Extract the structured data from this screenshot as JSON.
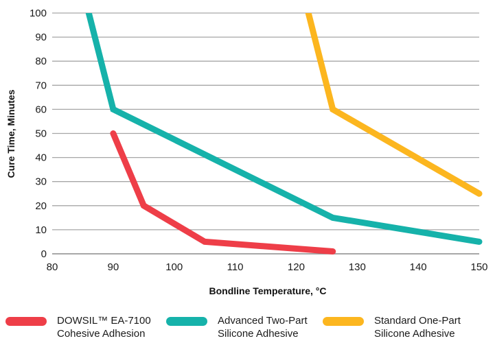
{
  "chart_data": {
    "type": "line",
    "title": "",
    "xlabel": "Bondline Temperature, °C",
    "ylabel": "Cure Time, Minutes",
    "xlim": [
      80,
      150
    ],
    "ylim": [
      0,
      100
    ],
    "xticks": [
      80,
      90,
      100,
      110,
      120,
      130,
      140,
      150
    ],
    "yticks": [
      0,
      10,
      20,
      30,
      40,
      50,
      60,
      70,
      80,
      90,
      100
    ],
    "grid": "horizontal",
    "legend_position": "bottom",
    "series": [
      {
        "name": "DOWSIL™ EA-7100 Cohesive Adhesion",
        "legend_lines": [
          "DOWSIL™ EA-7100",
          "Cohesive Adhesion"
        ],
        "color": "#ee3e48",
        "points": [
          [
            90,
            50
          ],
          [
            95,
            20
          ],
          [
            105,
            5
          ],
          [
            126,
            1
          ]
        ]
      },
      {
        "name": "Advanced Two-Part Silicone Adhesive",
        "legend_lines": [
          "Advanced Two-Part",
          "Silicone Adhesive"
        ],
        "color": "#16b2aa",
        "points": [
          [
            86,
            100
          ],
          [
            90,
            60
          ],
          [
            126,
            15
          ],
          [
            150,
            5
          ]
        ]
      },
      {
        "name": "Standard One-Part Silicone Adhesive",
        "legend_lines": [
          "Standard One-Part",
          "Silicone Adhesive"
        ],
        "color": "#fcb61f",
        "points": [
          [
            122,
            100
          ],
          [
            126,
            60
          ],
          [
            150,
            25
          ]
        ]
      }
    ]
  }
}
